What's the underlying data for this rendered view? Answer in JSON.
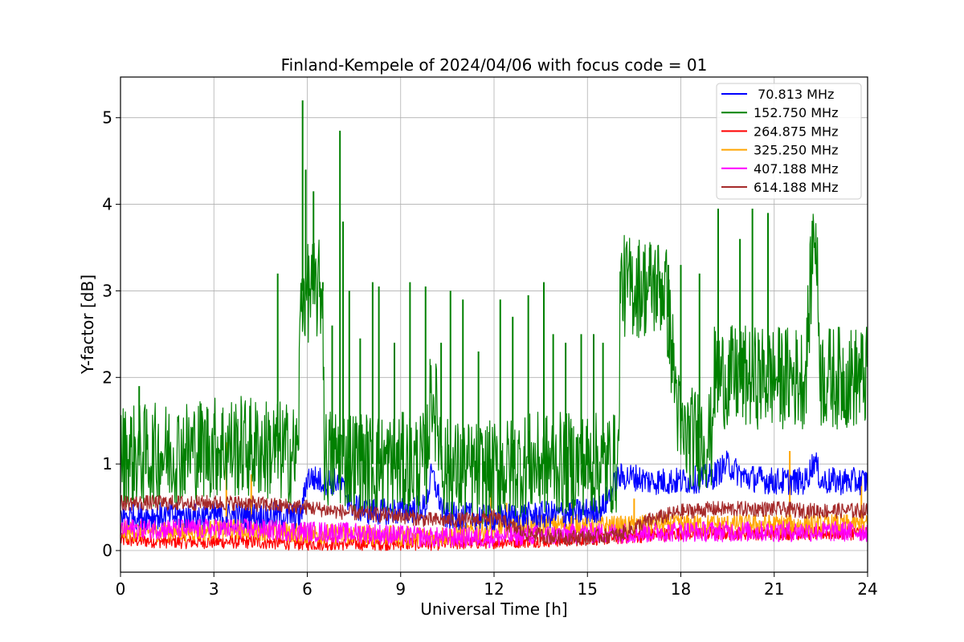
{
  "chart_data": {
    "type": "line",
    "title": "Finland-Kempele of 2024/04/06 with focus code = 01",
    "xlabel": "Universal Time [h]",
    "ylabel": "Y-factor [dB]",
    "xlim": [
      0,
      24
    ],
    "ylim": [
      -0.25,
      5.47
    ],
    "xticks": [
      0,
      3,
      6,
      9,
      12,
      15,
      18,
      21,
      24
    ],
    "yticks": [
      0,
      1,
      2,
      3,
      4,
      5
    ],
    "grid": true,
    "legend_position": "top-right",
    "series": [
      {
        "name": " 70.813 MHz",
        "color": "#0000ff",
        "x": [
          0,
          1,
          2,
          3,
          4,
          5,
          5.8,
          6,
          6.5,
          7,
          7.5,
          8,
          9,
          9.8,
          10,
          10.4,
          11,
          12,
          13,
          14,
          15,
          15.5,
          16,
          16.5,
          17,
          18,
          18.5,
          19,
          19.5,
          20,
          21,
          22,
          22.3,
          22.5,
          23,
          24
        ],
        "values": [
          0.4,
          0.4,
          0.4,
          0.4,
          0.4,
          0.4,
          0.4,
          0.85,
          0.8,
          0.8,
          0.5,
          0.45,
          0.45,
          0.5,
          0.9,
          0.4,
          0.4,
          0.38,
          0.4,
          0.42,
          0.45,
          0.5,
          0.85,
          0.85,
          0.8,
          0.8,
          0.82,
          0.85,
          1.0,
          0.85,
          0.8,
          0.8,
          1.05,
          0.8,
          0.8,
          0.8
        ],
        "band": 0.16
      },
      {
        "name": "152.750 MHz",
        "color": "#008000",
        "x": [
          0,
          1,
          2,
          3,
          4,
          5,
          5.7,
          5.8,
          6,
          6.5,
          6.55,
          7,
          8,
          9,
          9.8,
          10,
          10.4,
          11,
          12,
          13,
          14,
          15,
          16,
          16.05,
          17,
          17.5,
          18,
          19,
          19.05,
          20,
          21,
          22,
          22.3,
          22.5,
          23,
          24
        ],
        "values": [
          1.1,
          1.1,
          1.15,
          1.2,
          1.2,
          1.15,
          1.1,
          3.0,
          3.0,
          3.0,
          1.05,
          1.1,
          1.0,
          1.0,
          1.0,
          1.9,
          0.95,
          0.9,
          0.9,
          1.0,
          1.0,
          1.0,
          1.0,
          3.05,
          3.05,
          3.05,
          1.3,
          1.3,
          2.0,
          2.0,
          2.0,
          2.0,
          3.9,
          2.0,
          2.0,
          2.0
        ],
        "band": 0.6,
        "spikes": [
          [
            0.6,
            1.9
          ],
          [
            5.05,
            3.2
          ],
          [
            5.85,
            5.2
          ],
          [
            5.95,
            4.4
          ],
          [
            6.2,
            4.15
          ],
          [
            6.5,
            3.1
          ],
          [
            6.8,
            2.6
          ],
          [
            7.05,
            4.85
          ],
          [
            7.15,
            3.8
          ],
          [
            7.35,
            3.0
          ],
          [
            7.7,
            2.45
          ],
          [
            8.1,
            3.1
          ],
          [
            8.3,
            3.05
          ],
          [
            8.8,
            2.4
          ],
          [
            9.3,
            3.1
          ],
          [
            9.8,
            3.05
          ],
          [
            10.3,
            2.4
          ],
          [
            10.6,
            3.0
          ],
          [
            11.0,
            2.9
          ],
          [
            11.5,
            2.3
          ],
          [
            12.2,
            2.9
          ],
          [
            12.6,
            2.7
          ],
          [
            13.1,
            2.95
          ],
          [
            13.6,
            3.1
          ],
          [
            13.9,
            2.5
          ],
          [
            14.3,
            2.4
          ],
          [
            14.8,
            2.5
          ],
          [
            15.2,
            2.5
          ],
          [
            15.5,
            2.4
          ],
          [
            17.0,
            3.5
          ],
          [
            17.6,
            3.3
          ],
          [
            18.0,
            3.3
          ],
          [
            18.6,
            3.2
          ],
          [
            19.2,
            3.95
          ],
          [
            19.9,
            3.6
          ],
          [
            20.3,
            3.95
          ],
          [
            20.8,
            3.9
          ]
        ]
      },
      {
        "name": "264.875 MHz",
        "color": "#ff0000",
        "x": [
          0,
          2,
          4,
          6,
          8,
          10,
          12,
          14,
          16,
          18,
          20,
          22,
          24
        ],
        "values": [
          0.12,
          0.1,
          0.1,
          0.08,
          0.08,
          0.08,
          0.1,
          0.12,
          0.15,
          0.2,
          0.2,
          0.2,
          0.2
        ],
        "band": 0.08
      },
      {
        "name": "325.250 MHz",
        "color": "#ffa500",
        "x": [
          0,
          2,
          4,
          6,
          8,
          10,
          12,
          13,
          14,
          15,
          16,
          17,
          18,
          20,
          22,
          24
        ],
        "values": [
          0.22,
          0.22,
          0.25,
          0.2,
          0.18,
          0.15,
          0.25,
          0.3,
          0.3,
          0.3,
          0.28,
          0.3,
          0.3,
          0.3,
          0.3,
          0.3
        ],
        "band": 0.12,
        "spikes": [
          [
            3.4,
            1.25
          ],
          [
            4.2,
            0.88
          ],
          [
            11.9,
            0.75
          ],
          [
            12.4,
            0.55
          ],
          [
            14.5,
            0.55
          ],
          [
            16.5,
            0.6
          ],
          [
            21.5,
            1.15
          ],
          [
            23.8,
            0.85
          ]
        ]
      },
      {
        "name": "407.188 MHz",
        "color": "#ff00ff",
        "x": [
          0,
          2,
          4,
          6,
          8,
          10,
          12,
          13,
          14,
          15,
          16,
          18,
          20,
          22,
          24
        ],
        "values": [
          0.25,
          0.25,
          0.25,
          0.22,
          0.2,
          0.15,
          0.15,
          0.18,
          0.18,
          0.2,
          0.2,
          0.22,
          0.22,
          0.22,
          0.22
        ],
        "band": 0.12
      },
      {
        "name": "614.188 MHz",
        "color": "#a52a2a",
        "x": [
          0,
          1,
          2,
          3,
          4,
          5,
          6,
          7,
          8,
          9,
          10,
          11,
          12,
          13,
          14,
          15,
          16,
          17,
          18,
          19,
          20,
          21,
          22,
          23,
          24
        ],
        "values": [
          0.55,
          0.55,
          0.55,
          0.55,
          0.55,
          0.52,
          0.5,
          0.45,
          0.42,
          0.4,
          0.35,
          0.35,
          0.38,
          0.2,
          0.15,
          0.15,
          0.18,
          0.35,
          0.45,
          0.48,
          0.48,
          0.48,
          0.46,
          0.46,
          0.46
        ],
        "band": 0.09
      }
    ]
  }
}
